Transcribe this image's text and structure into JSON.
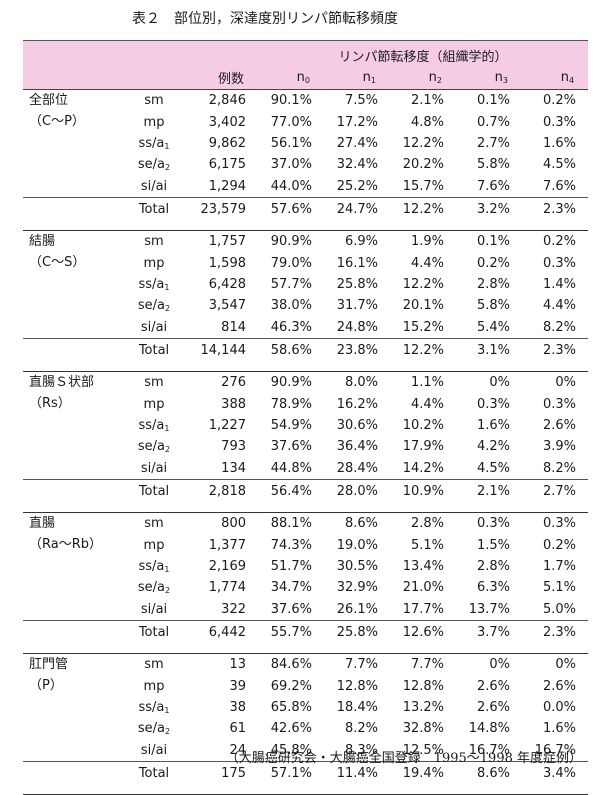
{
  "caption": "表２　部位別，深達度別リンパ節転移頻度",
  "header": {
    "group_label": "リンパ節転移度（組織学的）",
    "count_label": "例数",
    "n_cols": [
      "0",
      "1",
      "2",
      "3",
      "4"
    ]
  },
  "groups": [
    {
      "site_line1": "全部位",
      "site_line2": "（C〜P）",
      "rows": [
        {
          "depth": "sm",
          "sub": "",
          "count": "2,846",
          "v": [
            "90.1%",
            "7.5%",
            "2.1%",
            "0.1%",
            "0.2%"
          ]
        },
        {
          "depth": "mp",
          "sub": "",
          "count": "3,402",
          "v": [
            "77.0%",
            "17.2%",
            "4.8%",
            "0.7%",
            "0.3%"
          ]
        },
        {
          "depth": "ss/a",
          "sub": "1",
          "count": "9,862",
          "v": [
            "56.1%",
            "27.4%",
            "12.2%",
            "2.7%",
            "1.6%"
          ]
        },
        {
          "depth": "se/a",
          "sub": "2",
          "count": "6,175",
          "v": [
            "37.0%",
            "32.4%",
            "20.2%",
            "5.8%",
            "4.5%"
          ]
        },
        {
          "depth": "si/ai",
          "sub": "",
          "count": "1,294",
          "v": [
            "44.0%",
            "25.2%",
            "15.7%",
            "7.6%",
            "7.6%"
          ]
        }
      ],
      "total": {
        "label": "Total",
        "count": "23,579",
        "v": [
          "57.6%",
          "24.7%",
          "12.2%",
          "3.2%",
          "2.3%"
        ]
      }
    },
    {
      "site_line1": "結腸",
      "site_line2": "（C〜S）",
      "rows": [
        {
          "depth": "sm",
          "sub": "",
          "count": "1,757",
          "v": [
            "90.9%",
            "6.9%",
            "1.9%",
            "0.1%",
            "0.2%"
          ]
        },
        {
          "depth": "mp",
          "sub": "",
          "count": "1,598",
          "v": [
            "79.0%",
            "16.1%",
            "4.4%",
            "0.2%",
            "0.3%"
          ]
        },
        {
          "depth": "ss/a",
          "sub": "1",
          "count": "6,428",
          "v": [
            "57.7%",
            "25.8%",
            "12.2%",
            "2.8%",
            "1.4%"
          ]
        },
        {
          "depth": "se/a",
          "sub": "2",
          "count": "3,547",
          "v": [
            "38.0%",
            "31.7%",
            "20.1%",
            "5.8%",
            "4.4%"
          ]
        },
        {
          "depth": "si/ai",
          "sub": "",
          "count": "814",
          "v": [
            "46.3%",
            "24.8%",
            "15.2%",
            "5.4%",
            "8.2%"
          ]
        }
      ],
      "total": {
        "label": "Total",
        "count": "14,144",
        "v": [
          "58.6%",
          "23.8%",
          "12.2%",
          "3.1%",
          "2.3%"
        ]
      }
    },
    {
      "site_line1": "直腸Ｓ状部",
      "site_line2": "（Rs）",
      "rows": [
        {
          "depth": "sm",
          "sub": "",
          "count": "276",
          "v": [
            "90.9%",
            "8.0%",
            "1.1%",
            "0%",
            "0%"
          ]
        },
        {
          "depth": "mp",
          "sub": "",
          "count": "388",
          "v": [
            "78.9%",
            "16.2%",
            "4.4%",
            "0.3%",
            "0.3%"
          ]
        },
        {
          "depth": "ss/a",
          "sub": "1",
          "count": "1,227",
          "v": [
            "54.9%",
            "30.6%",
            "10.2%",
            "1.6%",
            "2.6%"
          ]
        },
        {
          "depth": "se/a",
          "sub": "2",
          "count": "793",
          "v": [
            "37.6%",
            "36.4%",
            "17.9%",
            "4.2%",
            "3.9%"
          ]
        },
        {
          "depth": "si/ai",
          "sub": "",
          "count": "134",
          "v": [
            "44.8%",
            "28.4%",
            "14.2%",
            "4.5%",
            "8.2%"
          ]
        }
      ],
      "total": {
        "label": "Total",
        "count": "2,818",
        "v": [
          "56.4%",
          "28.0%",
          "10.9%",
          "2.1%",
          "2.7%"
        ]
      }
    },
    {
      "site_line1": "直腸",
      "site_line2": "（Ra〜Rb）",
      "rows": [
        {
          "depth": "sm",
          "sub": "",
          "count": "800",
          "v": [
            "88.1%",
            "8.6%",
            "2.8%",
            "0.3%",
            "0.3%"
          ]
        },
        {
          "depth": "mp",
          "sub": "",
          "count": "1,377",
          "v": [
            "74.3%",
            "19.0%",
            "5.1%",
            "1.5%",
            "0.2%"
          ]
        },
        {
          "depth": "ss/a",
          "sub": "1",
          "count": "2,169",
          "v": [
            "51.7%",
            "30.5%",
            "13.4%",
            "2.8%",
            "1.7%"
          ]
        },
        {
          "depth": "se/a",
          "sub": "2",
          "count": "1,774",
          "v": [
            "34.7%",
            "32.9%",
            "21.0%",
            "6.3%",
            "5.1%"
          ]
        },
        {
          "depth": "si/ai",
          "sub": "",
          "count": "322",
          "v": [
            "37.6%",
            "26.1%",
            "17.7%",
            "13.7%",
            "5.0%"
          ]
        }
      ],
      "total": {
        "label": "Total",
        "count": "6,442",
        "v": [
          "55.7%",
          "25.8%",
          "12.6%",
          "3.7%",
          "2.3%"
        ]
      }
    },
    {
      "site_line1": "肛門管",
      "site_line2": "（P）",
      "rows": [
        {
          "depth": "sm",
          "sub": "",
          "count": "13",
          "v": [
            "84.6%",
            "7.7%",
            "7.7%",
            "0%",
            "0%"
          ]
        },
        {
          "depth": "mp",
          "sub": "",
          "count": "39",
          "v": [
            "69.2%",
            "12.8%",
            "12.8%",
            "2.6%",
            "2.6%"
          ]
        },
        {
          "depth": "ss/a",
          "sub": "1",
          "count": "38",
          "v": [
            "65.8%",
            "18.4%",
            "13.2%",
            "2.6%",
            "0.0%"
          ]
        },
        {
          "depth": "se/a",
          "sub": "2",
          "count": "61",
          "v": [
            "42.6%",
            "8.2%",
            "32.8%",
            "14.8%",
            "1.6%"
          ]
        },
        {
          "depth": "si/ai",
          "sub": "",
          "count": "24",
          "v": [
            "45.8%",
            "8.3%",
            "12.5%",
            "16.7%",
            "16.7%"
          ]
        }
      ],
      "total": {
        "label": "Total",
        "count": "175",
        "v": [
          "57.1%",
          "11.4%",
          "19.4%",
          "8.6%",
          "3.4%"
        ]
      }
    }
  ],
  "footer": "（大腸癌研究会・大腸癌全国登録　1995〜1998 年度症例）",
  "colors": {
    "header_bg": "#f5cce3"
  }
}
